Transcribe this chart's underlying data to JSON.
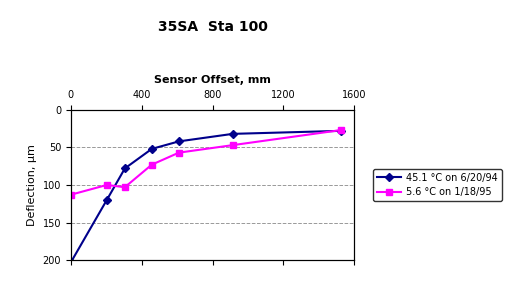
{
  "title": "35SA  Sta 100",
  "xlabel_top": "Sensor Offset, mm",
  "ylabel": "Deflection, μm",
  "series1": {
    "label": "45.1 °C on 6/20/94",
    "color": "#00008B",
    "marker": "D",
    "x": [
      0,
      203,
      305,
      457,
      610,
      914,
      1524
    ],
    "y": [
      203,
      120,
      78,
      52,
      42,
      32,
      28
    ]
  },
  "series2": {
    "label": "5.6 °C on 1/18/95",
    "color": "#FF00FF",
    "marker": "s",
    "x": [
      0,
      203,
      305,
      457,
      610,
      914,
      1524
    ],
    "y": [
      113,
      100,
      103,
      73,
      57,
      47,
      27
    ]
  },
  "xlim": [
    0,
    1600
  ],
  "ylim": [
    200,
    0
  ],
  "xticks": [
    0,
    400,
    800,
    1200,
    1600
  ],
  "yticks": [
    0,
    50,
    100,
    150,
    200
  ],
  "background_color": "#FFFFFF",
  "plot_bg_color": "#FFFFFF",
  "outer_bg_color": "#C0C0C0"
}
